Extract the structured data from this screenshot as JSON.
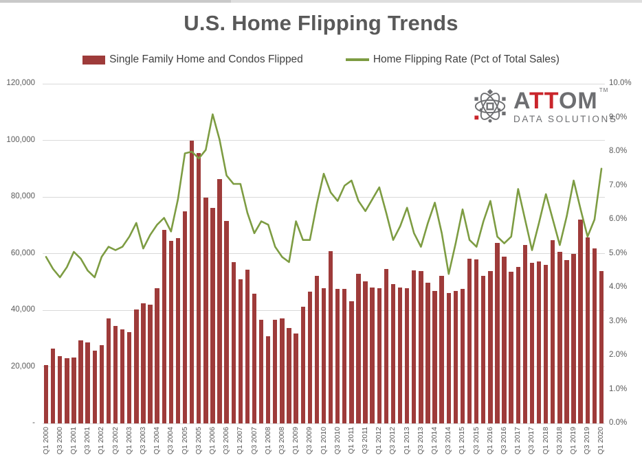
{
  "header": {
    "title": "U.S. Home Flipping Trends"
  },
  "legend": {
    "bar_label": "Single Family Home and Condos Flipped",
    "line_label": "Home Flipping Rate (Pct of Total Sales)"
  },
  "logo": {
    "part_a": "A",
    "part_tt": "TT",
    "part_om": "OM",
    "tm": "TM",
    "subtitle": "DATA SOLUTIONS",
    "gray": "#6d6e71",
    "red": "#c9252b"
  },
  "colors": {
    "bar": "#9e3b3a",
    "line": "#7d9c42",
    "grid": "#d9d9d9",
    "axis_text": "#595959",
    "title_text": "#595959"
  },
  "chart_data": {
    "type": "combo",
    "title": "U.S. Home Flipping Trends",
    "grid": "horizontal",
    "legend_position": "top",
    "x_tick_every": 2,
    "left_axis": {
      "min": 0,
      "max": 120000,
      "tick_step": 20000,
      "tick_labels": [
        "120,000",
        "100,000",
        "80,000",
        "60,000",
        "40,000",
        "20,000",
        "-"
      ]
    },
    "right_axis": {
      "min": 0,
      "max": 10,
      "tick_step": 1,
      "tick_labels": [
        "10.0%",
        "9.0%",
        "8.0%",
        "7.0%",
        "6.0%",
        "5.0%",
        "4.0%",
        "3.0%",
        "2.0%",
        "1.0%",
        "0.0%"
      ]
    },
    "categories": [
      "Q1 2000",
      "Q2 2000",
      "Q3 2000",
      "Q4 2000",
      "Q1 2001",
      "Q2 2001",
      "Q3 2001",
      "Q4 2001",
      "Q1 2002",
      "Q2 2002",
      "Q3 2002",
      "Q4 2002",
      "Q1 2003",
      "Q2 2003",
      "Q3 2003",
      "Q4 2003",
      "Q1 2004",
      "Q2 2004",
      "Q3 2004",
      "Q4 2004",
      "Q1 2005",
      "Q2 2005",
      "Q3 2005",
      "Q4 2005",
      "Q1 2006",
      "Q2 2006",
      "Q3 2006",
      "Q4 2006",
      "Q1 2007",
      "Q2 2007",
      "Q3 2007",
      "Q4 2007",
      "Q1 2008",
      "Q2 2008",
      "Q3 2008",
      "Q4 2008",
      "Q1 2009",
      "Q2 2009",
      "Q3 2009",
      "Q4 2009",
      "Q1 2010",
      "Q2 2010",
      "Q3 2010",
      "Q4 2010",
      "Q1 2011",
      "Q2 2011",
      "Q3 2011",
      "Q4 2011",
      "Q1 2012",
      "Q2 2012",
      "Q3 2012",
      "Q4 2012",
      "Q1 2013",
      "Q2 2013",
      "Q3 2013",
      "Q4 2013",
      "Q1 2014",
      "Q2 2014",
      "Q3 2014",
      "Q4 2014",
      "Q1 2015",
      "Q2 2015",
      "Q3 2015",
      "Q4 2015",
      "Q1 2016",
      "Q2 2016",
      "Q3 2016",
      "Q4 2016",
      "Q1 2017",
      "Q2 2017",
      "Q3 2017",
      "Q4 2017",
      "Q1 2018",
      "Q2 2018",
      "Q3 2018",
      "Q4 2018",
      "Q1 2019",
      "Q2 2019",
      "Q3 2019",
      "Q4 2019",
      "Q1 2020"
    ],
    "series": [
      {
        "name": "Single Family Home and Condos Flipped",
        "type": "bar",
        "axis": "left",
        "color": "#9e3b3a",
        "values": [
          20500,
          26400,
          23800,
          23000,
          23300,
          29300,
          28500,
          25700,
          27600,
          37000,
          34400,
          33100,
          32200,
          40200,
          42500,
          42000,
          47700,
          68300,
          64400,
          65500,
          74800,
          99800,
          95500,
          79800,
          76100,
          86300,
          71500,
          57000,
          50800,
          54400,
          45900,
          36600,
          30900,
          36500,
          37000,
          33800,
          31800,
          41200,
          46600,
          52200,
          47800,
          60900,
          47600,
          47500,
          43200,
          52900,
          50100,
          48100,
          47700,
          54500,
          49300,
          48100,
          47700,
          54100,
          53700,
          49700,
          46900,
          52100,
          46100,
          46900,
          47500,
          58200,
          58000,
          52100,
          53700,
          63800,
          59000,
          53500,
          55200,
          63000,
          56800,
          57200,
          56100,
          64800,
          60600,
          57800,
          59800,
          71900,
          65600,
          61800,
          53700
        ]
      },
      {
        "name": "Home Flipping Rate (Pct of Total Sales)",
        "type": "line",
        "axis": "right",
        "color": "#7d9c42",
        "values": [
          4.9,
          4.55,
          4.3,
          4.6,
          5.05,
          4.85,
          4.5,
          4.3,
          4.9,
          5.2,
          5.1,
          5.2,
          5.5,
          5.9,
          5.15,
          5.55,
          5.85,
          6.05,
          5.65,
          6.6,
          7.95,
          8.0,
          7.8,
          8.05,
          9.1,
          8.35,
          7.3,
          7.05,
          7.05,
          6.2,
          5.6,
          5.95,
          5.85,
          5.2,
          4.9,
          4.75,
          5.95,
          5.4,
          5.4,
          6.45,
          7.35,
          6.8,
          6.55,
          7.0,
          7.15,
          6.55,
          6.25,
          6.6,
          6.95,
          6.2,
          5.4,
          5.8,
          6.35,
          5.6,
          5.2,
          5.9,
          6.5,
          5.6,
          4.4,
          5.3,
          6.3,
          5.4,
          5.2,
          5.95,
          6.55,
          5.5,
          5.3,
          5.5,
          6.9,
          6.0,
          5.1,
          5.9,
          6.75,
          6.0,
          5.25,
          6.1,
          7.15,
          6.3,
          5.5,
          6.0,
          7.5
        ]
      }
    ]
  }
}
